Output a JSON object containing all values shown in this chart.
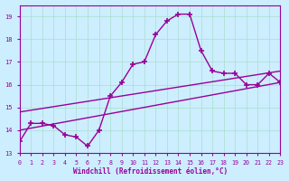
{
  "x": [
    0,
    1,
    2,
    3,
    4,
    5,
    6,
    7,
    8,
    9,
    10,
    11,
    12,
    13,
    14,
    15,
    16,
    17,
    18,
    19,
    20,
    21,
    22,
    23
  ],
  "y": [
    13.5,
    14.3,
    14.3,
    14.2,
    13.8,
    13.7,
    13.3,
    14.0,
    15.5,
    16.1,
    16.9,
    17.0,
    18.2,
    18.8,
    19.1,
    19.1,
    17.5,
    16.6,
    16.5,
    16.5,
    16.0,
    16.0,
    16.5,
    16.1
  ],
  "trend1_start": 14.0,
  "trend1_end": 16.1,
  "trend2_start": 14.8,
  "trend2_end": 16.6,
  "xlim": [
    0,
    23
  ],
  "ylim": [
    13,
    19.5
  ],
  "yticks": [
    13,
    14,
    15,
    16,
    17,
    18,
    19
  ],
  "xticks": [
    0,
    1,
    2,
    3,
    4,
    5,
    6,
    7,
    8,
    9,
    10,
    11,
    12,
    13,
    14,
    15,
    16,
    17,
    18,
    19,
    20,
    21,
    22,
    23
  ],
  "line_color": "#990099",
  "bg_color": "#cceeff",
  "grid_color": "#aaddcc",
  "xlabel": "Windchill (Refroidissement éolien,°C)",
  "marker": "+",
  "linewidth": 1.0,
  "marker_size": 5
}
